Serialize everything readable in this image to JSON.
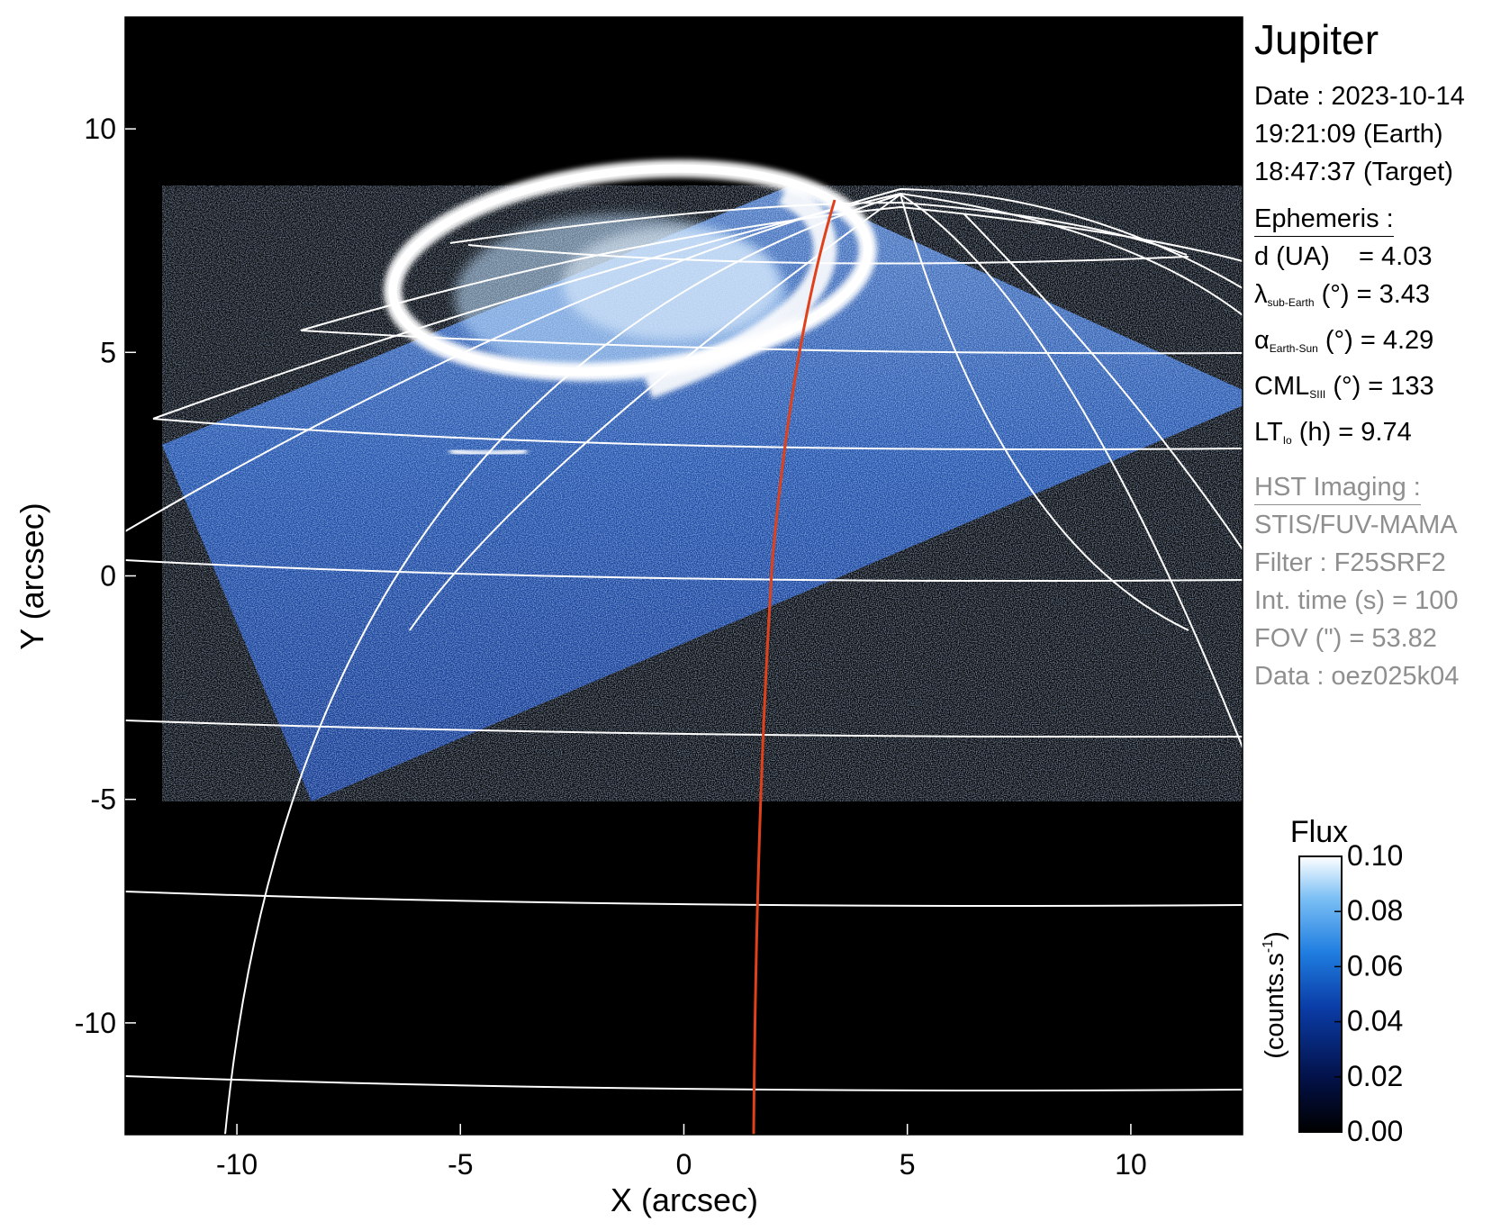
{
  "planet": "Jupiter",
  "observation": {
    "date_line": "Date : 2023-10-14",
    "earth_time": "19:21:09 (Earth)",
    "target_time": "18:47:37 (Target)"
  },
  "ephemeris": {
    "header": "Ephemeris :",
    "distance": {
      "label": "d (UA)",
      "value": "= 4.03"
    },
    "sub_earth_lat": {
      "symbol": "λ",
      "sub": "sub-Earth",
      "unit": "(°)",
      "value": "= 3.43"
    },
    "phase_angle": {
      "symbol": "α",
      "sub": "Earth-Sun",
      "unit": "(°)",
      "value": "= 4.29"
    },
    "cml": {
      "symbol": "CML",
      "sub": "SIII",
      "unit": "(°)",
      "value": "= 133"
    },
    "lt": {
      "symbol": "LT",
      "sub": "Io",
      "unit": "(h)",
      "value": "= 9.74"
    }
  },
  "hst": {
    "header": "HST Imaging :",
    "instrument": "STIS/FUV-MAMA",
    "filter": "Filter : F25SRF2",
    "int_time": "Int. time (s) = 100",
    "fov": "FOV (\") = 53.82",
    "data": "Data : oez025k04"
  },
  "chart_data": {
    "type": "heatmap",
    "xlabel": "X (arcsec)",
    "ylabel": "Y (arcsec)",
    "xlim": [
      -12.5,
      12.5
    ],
    "ylim": [
      -12.5,
      12.5
    ],
    "x_ticks": [
      -10,
      -5,
      0,
      5,
      10
    ],
    "y_ticks": [
      10,
      5,
      0,
      -5,
      -10
    ],
    "x_tick_labels": [
      "-10",
      "-5",
      "0",
      "5",
      "10"
    ],
    "y_tick_labels": [
      "10",
      "5",
      "0",
      "-5",
      "-10"
    ],
    "colorbar": {
      "title": "Flux",
      "unit_label": "(counts.s",
      "unit_sup": "-1",
      "unit_close": ")",
      "range": [
        0.0,
        0.1
      ],
      "ticks": [
        0.1,
        0.08,
        0.06,
        0.04,
        0.02,
        0.0
      ],
      "tick_labels": [
        "0.10",
        "0.08",
        "0.06",
        "0.04",
        "0.02",
        "0.00"
      ],
      "colors": [
        "#000000",
        "#03124a",
        "#0a3ca6",
        "#1f7de0",
        "#7cc0f5",
        "#ffffff"
      ]
    },
    "colors": {
      "background": "#000000",
      "grid": "#ffffff",
      "io_footpath": "#e0401a",
      "aurora": "#ffffff"
    }
  }
}
